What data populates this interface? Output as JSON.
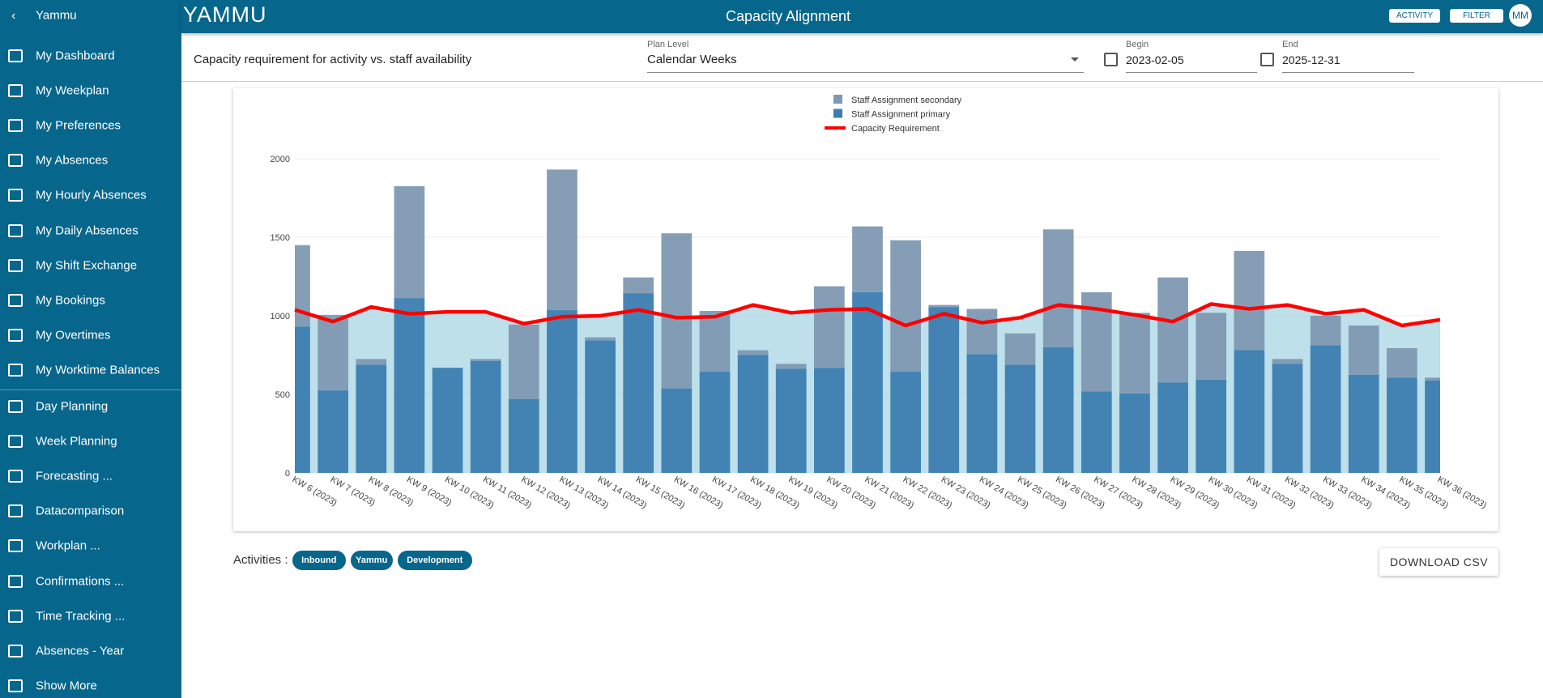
{
  "sidebar": {
    "title": "Yammu",
    "items": [
      "My Dashboard",
      "My Weekplan",
      "My Preferences",
      "My Absences",
      "My Hourly Absences",
      "My Daily Absences",
      "My Shift Exchange",
      "My Bookings",
      "My Overtimes",
      "My Worktime Balances",
      "Day Planning",
      "Week Planning",
      "Forecasting ...",
      "Datacomparison",
      "Workplan ...",
      "Confirmations ...",
      "Time Tracking ...",
      "Absences - Year",
      "Show More"
    ]
  },
  "header": {
    "logo": "YAMMU",
    "title": "Capacity Alignment",
    "buttons": [
      "ACTIVITY",
      "FILTER"
    ],
    "avatar": "MM"
  },
  "filters": {
    "description": "Capacity requirement for activity vs. staff availability",
    "plan_level": {
      "label": "Plan Level",
      "value": "Calendar Weeks"
    },
    "begin": {
      "label": "Begin",
      "value": "2023-02-05"
    },
    "end": {
      "label": "End",
      "value": "2025-12-31"
    }
  },
  "chart_data": {
    "type": "bar",
    "categories": [
      "KW 6 (2023)",
      "KW 7 (2023)",
      "KW 8 (2023)",
      "KW 9 (2023)",
      "KW 10 (2023)",
      "KW 11 (2023)",
      "KW 12 (2023)",
      "KW 13 (2023)",
      "KW 14 (2023)",
      "KW 15 (2023)",
      "KW 16 (2023)",
      "KW 17 (2023)",
      "KW 18 (2023)",
      "KW 19 (2023)",
      "KW 20 (2023)",
      "KW 21 (2023)",
      "KW 22 (2023)",
      "KW 23 (2023)",
      "KW 24 (2023)",
      "KW 25 (2023)",
      "KW 26 (2023)",
      "KW 27 (2023)",
      "KW 28 (2023)",
      "KW 29 (2023)",
      "KW 30 (2023)",
      "KW 31 (2023)",
      "KW 32 (2023)",
      "KW 33 (2023)",
      "KW 34 (2023)",
      "KW 35 (2023)",
      "KW 36 (2023)"
    ],
    "series": [
      {
        "name": "Staff Assignment secondary",
        "type": "bar",
        "color": "#7f98b2",
        "values": [
          519,
          481,
          37,
          712,
          0,
          12,
          475,
          893,
          19,
          100,
          987,
          387,
          31,
          31,
          519,
          419,
          837,
          13,
          288,
          200,
          750,
          631,
          513,
          669,
          425,
          632,
          31,
          187,
          313,
          188,
          18
        ]
      },
      {
        "name": "Staff Assignment primary",
        "type": "bar",
        "color": "#3b7db1",
        "values": [
          931,
          525,
          688,
          1113,
          669,
          713,
          469,
          1038,
          844,
          1144,
          538,
          644,
          750,
          663,
          669,
          1150,
          644,
          1056,
          756,
          688,
          800,
          519,
          506,
          575,
          594,
          781,
          694,
          813,
          625,
          606,
          588
        ]
      },
      {
        "name": "Capacity Requirement",
        "type": "line",
        "color": "#ff0000",
        "fill": "#add8e6",
        "values": [
          1038,
          963,
          1056,
          1013,
          1025,
          1025,
          950,
          994,
          1000,
          1038,
          988,
          994,
          1069,
          1019,
          1038,
          1044,
          938,
          1013,
          956,
          988,
          1069,
          1044,
          1006,
          963,
          1075,
          1044,
          1069,
          1013,
          1038,
          938,
          975
        ]
      }
    ],
    "ylim": [
      0,
      2000
    ],
    "yticks": [
      0,
      500,
      1000,
      1500,
      2000
    ],
    "grid": true,
    "stacked": true,
    "legend": "top"
  },
  "activities": {
    "label": "Activities :",
    "chips": [
      "Inbound",
      "Yammu",
      "Development"
    ]
  },
  "download_button": "DOWNLOAD CSV"
}
